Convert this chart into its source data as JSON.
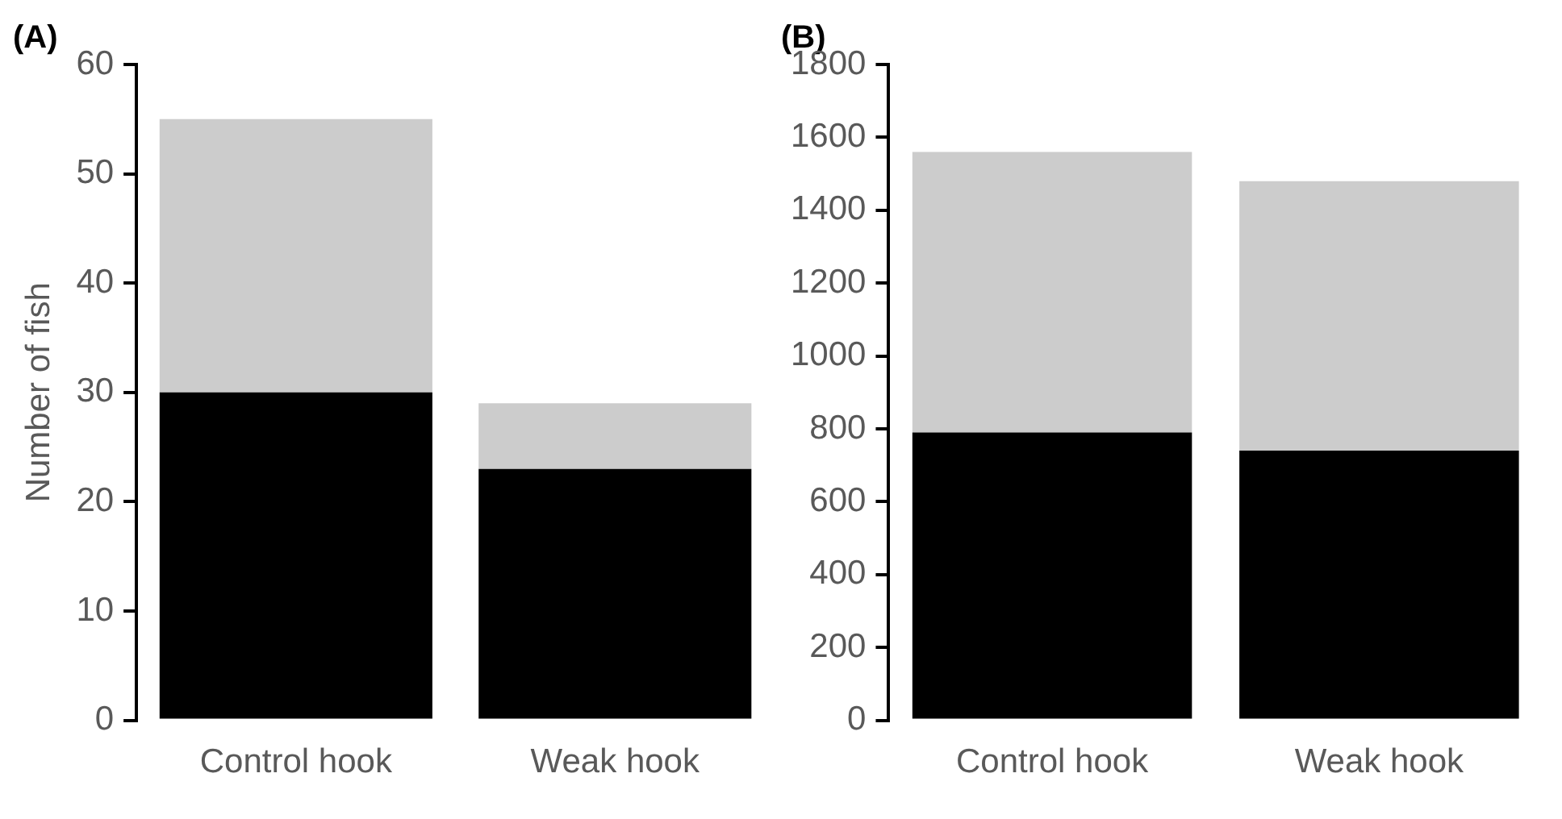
{
  "chart_data": [
    {
      "type": "bar",
      "title": "(A)",
      "ylabel": "Number of fish",
      "categories": [
        "Control hook",
        "Weak hook"
      ],
      "stacked": true,
      "series": [
        {
          "color": "#000000",
          "values": [
            30,
            23
          ]
        },
        {
          "color": "#cccccc",
          "values": [
            25,
            6
          ]
        }
      ],
      "ylim": [
        0,
        60
      ],
      "yticks": [
        0,
        10,
        20,
        30,
        40,
        50,
        60
      ],
      "grid": false,
      "legend": false
    },
    {
      "type": "bar",
      "title": "(B)",
      "categories": [
        "Control hook",
        "Weak hook"
      ],
      "stacked": true,
      "series": [
        {
          "color": "#000000",
          "values": [
            790,
            740
          ]
        },
        {
          "color": "#cccccc",
          "values": [
            770,
            740
          ]
        }
      ],
      "ylim": [
        0,
        1800
      ],
      "yticks": [
        0,
        200,
        400,
        600,
        800,
        1000,
        1200,
        1400,
        1600,
        1800
      ],
      "grid": false,
      "legend": false
    }
  ]
}
